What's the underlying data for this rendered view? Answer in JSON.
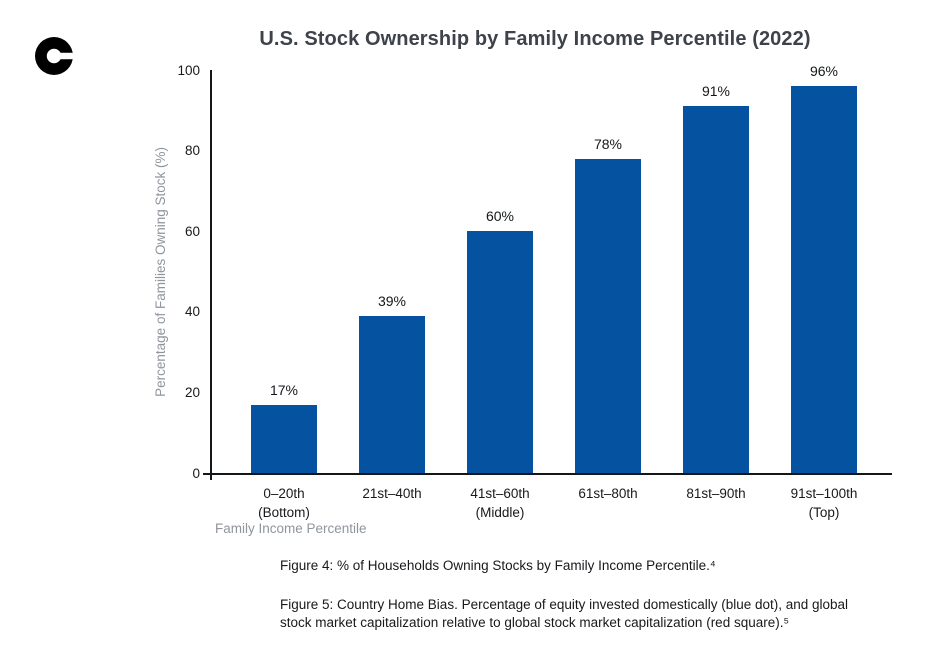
{
  "logo": {
    "name": "coinbase-logo",
    "color": "#000000"
  },
  "chart_data": {
    "type": "bar",
    "title": "U.S. Stock Ownership by Family Income Percentile (2022)",
    "categories": [
      "0–20th (Bottom)",
      "21st–40th",
      "41st–60th (Middle)",
      "61st–80th",
      "81st–90th",
      "91st–100th (Top)"
    ],
    "category_lines": [
      [
        "0–20th",
        "(Bottom)"
      ],
      [
        "21st–40th"
      ],
      [
        "41st–60th",
        "(Middle)"
      ],
      [
        "61st–80th"
      ],
      [
        "81st–90th"
      ],
      [
        "91st–100th",
        "(Top)"
      ]
    ],
    "values": [
      17,
      39,
      60,
      78,
      91,
      96
    ],
    "bar_labels": [
      "17%",
      "39%",
      "60%",
      "78%",
      "91%",
      "96%"
    ],
    "xlabel": "Family Income Percentile",
    "ylabel": "Percentage of Families Owning Stock (%)",
    "ylim": [
      0,
      100
    ],
    "yticks": [
      0,
      20,
      40,
      60,
      80,
      100
    ],
    "bar_color": "#0552a1",
    "grid": false,
    "legend": false
  },
  "captions": {
    "figure4": "Figure 4: % of Households Owning Stocks by Family Income Percentile.⁴",
    "figure5": "Figure 5: Country Home Bias. Percentage of equity invested domestically (blue dot), and global stock market capitalization relative to global stock market capitalization (red square).⁵"
  },
  "colors": {
    "bar": "#0552a1",
    "title": "#3e434b",
    "axis": "#14171a",
    "text": "#17191c",
    "muted": "#8f959d",
    "background": "#ffffff"
  }
}
